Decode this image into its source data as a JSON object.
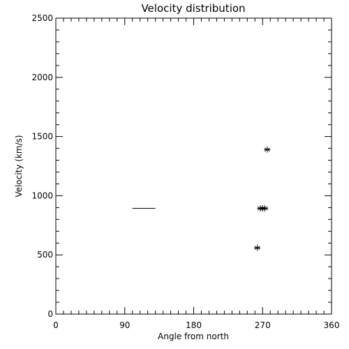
{
  "chart_data": {
    "type": "scatter",
    "title": "Velocity distribution",
    "xlabel": "Angle from north",
    "ylabel": "Velocity (km/s)",
    "xlim": [
      0,
      360
    ],
    "ylim": [
      0,
      2500
    ],
    "xticks": [
      0,
      90,
      180,
      270,
      360
    ],
    "xtick_labels": [
      "0",
      "90",
      "180",
      "270",
      "360"
    ],
    "xminor_step": 10,
    "yticks": [
      0,
      500,
      1000,
      1500,
      2000,
      2500
    ],
    "ytick_labels": [
      "0",
      "500",
      "1000",
      "1500",
      "2000",
      "2500"
    ],
    "yminor_step": 100,
    "grid": false,
    "marker": "asterisk",
    "color": "#000000",
    "series": [
      {
        "points": [
          {
            "x": 263,
            "y": 560
          },
          {
            "x": 267,
            "y": 893
          },
          {
            "x": 270,
            "y": 893
          },
          {
            "x": 273,
            "y": 893
          },
          {
            "x": 276,
            "y": 1390
          }
        ]
      }
    ],
    "segments": [
      {
        "x0": 100,
        "x1": 130,
        "y": 893
      }
    ]
  }
}
